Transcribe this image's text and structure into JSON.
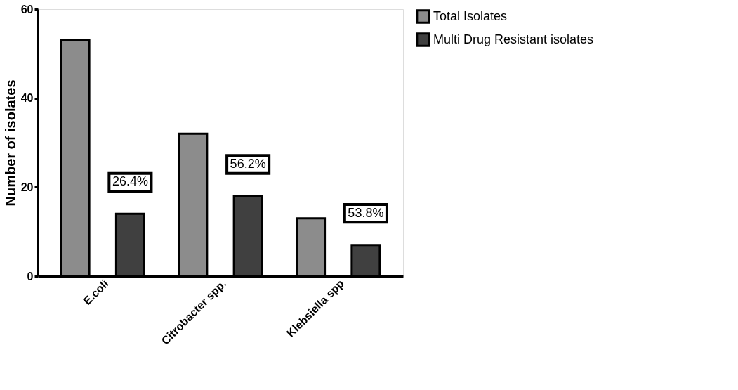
{
  "chart_data": {
    "type": "bar",
    "ylabel": "Number of isolates",
    "categories": [
      "E.coli",
      "Citrobacter spp.",
      "Klebsiella spp"
    ],
    "series": [
      {
        "name": "Total Isolates",
        "color": "#8c8c8c",
        "values": [
          53,
          32,
          13
        ]
      },
      {
        "name": "Multi Drug Resistant isolates",
        "color": "#404040",
        "values": [
          14,
          18,
          7
        ]
      }
    ],
    "ylim": [
      0,
      60
    ],
    "yticks": [
      0,
      20,
      40,
      60
    ],
    "grid": false,
    "legend": "top right",
    "annotations": [
      "26.4%",
      "56.2%",
      "53.8%"
    ]
  }
}
